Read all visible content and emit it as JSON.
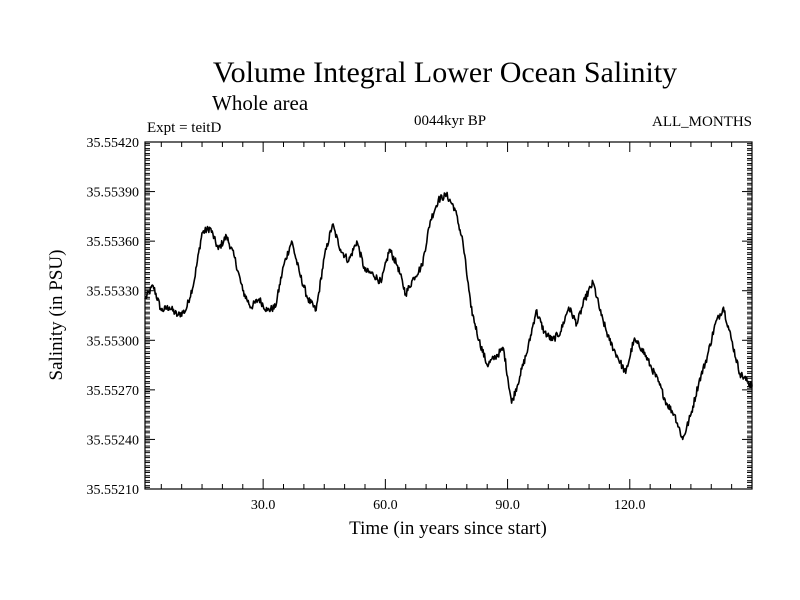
{
  "chart_data": {
    "type": "line",
    "title": "Volume Integral Lower Ocean Salinity",
    "subtitle": "Whole area",
    "header_left": "Expt = teitD",
    "header_center": "0044kyr BP",
    "header_right": "ALL_MONTHS",
    "xlabel": "Time (in years since start)",
    "ylabel": "Salinity (in PSU)",
    "xlim": [
      1,
      150
    ],
    "ylim": [
      35.5521,
      35.5542
    ],
    "x_ticks": [
      30,
      60,
      90,
      120
    ],
    "x_tick_labels": [
      "30.0",
      "60.0",
      "90.0",
      "120.0"
    ],
    "y_ticks": [
      35.5521,
      35.5524,
      35.5527,
      35.553,
      35.5533,
      35.5536,
      35.5539,
      35.5542
    ],
    "y_tick_labels": [
      "35.55210",
      "35.55240",
      "35.55270",
      "35.55300",
      "35.55330",
      "35.55360",
      "35.55390",
      "35.55420"
    ],
    "grid": false,
    "color": "#000000",
    "series": [
      {
        "name": "Salinity",
        "x": [
          1,
          3,
          5,
          7,
          9,
          11,
          13,
          15,
          17,
          19,
          21,
          23,
          25,
          27,
          29,
          31,
          33,
          35,
          37,
          39,
          41,
          43,
          45,
          47,
          49,
          51,
          53,
          55,
          57,
          59,
          61,
          63,
          65,
          67,
          69,
          71,
          73,
          75,
          77,
          79,
          81,
          83,
          85,
          87,
          89,
          91,
          93,
          95,
          97,
          99,
          101,
          103,
          105,
          107,
          109,
          111,
          113,
          115,
          117,
          119,
          121,
          123,
          125,
          127,
          129,
          131,
          133,
          135,
          137,
          139,
          141,
          143,
          145,
          147,
          149,
          150
        ],
        "values": [
          35.55325,
          35.55333,
          35.55318,
          35.5532,
          35.55315,
          35.55318,
          35.55335,
          35.55365,
          35.55368,
          35.55355,
          35.55363,
          35.5535,
          35.5533,
          35.5532,
          35.55325,
          35.55318,
          35.5532,
          35.55345,
          35.5536,
          35.5534,
          35.55325,
          35.55318,
          35.5535,
          35.5537,
          35.55355,
          35.55348,
          35.5536,
          35.55342,
          35.5534,
          35.55335,
          35.55355,
          35.55345,
          35.55328,
          35.55338,
          35.55345,
          35.55372,
          35.55385,
          35.55388,
          35.5538,
          35.5536,
          35.5532,
          35.553,
          35.55285,
          35.5529,
          35.55295,
          35.55262,
          35.55278,
          35.55295,
          35.55318,
          35.55305,
          35.553,
          35.55305,
          35.5532,
          35.5531,
          35.55325,
          35.55335,
          35.55315,
          35.553,
          35.5529,
          35.5528,
          35.553,
          35.55295,
          35.55285,
          35.55275,
          35.55262,
          35.55255,
          35.5524,
          35.55255,
          35.55275,
          35.5529,
          35.5531,
          35.5532,
          35.553,
          35.5528,
          35.55275,
          35.55272
        ]
      }
    ]
  }
}
